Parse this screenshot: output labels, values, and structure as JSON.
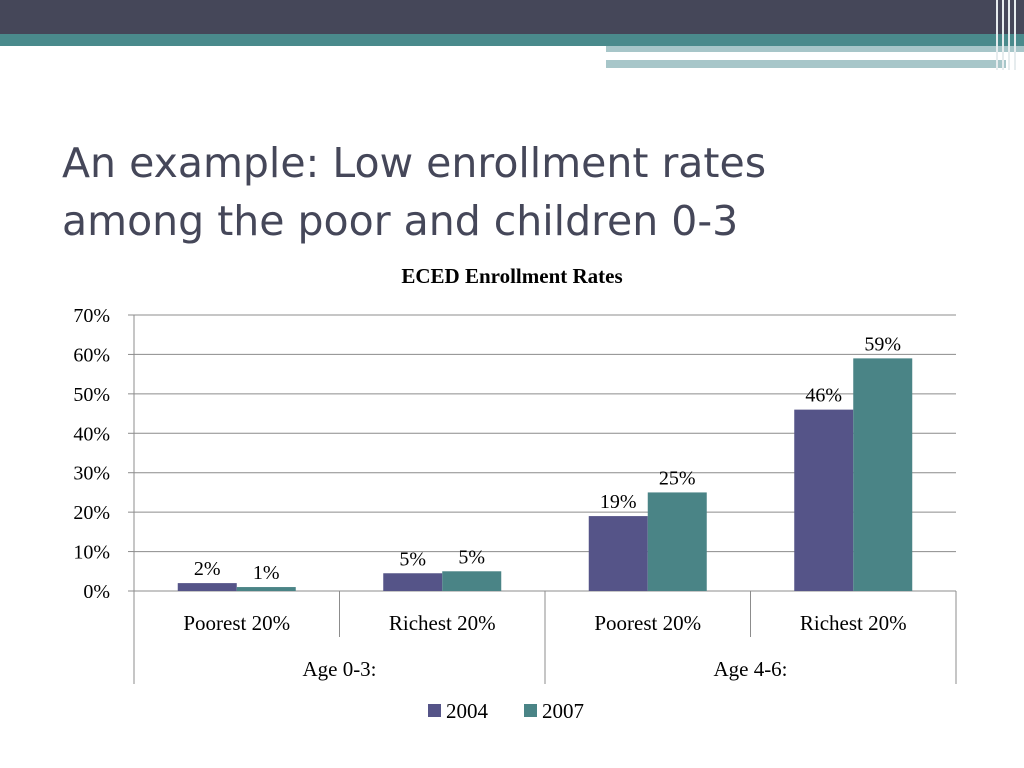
{
  "slide": {
    "title_line1": "An example: Low enrollment rates",
    "title_line2": "among the poor and children 0-3"
  },
  "colors": {
    "header_dark": "#454759",
    "header_teal": "#4a8a8c",
    "series_2004": "#555488",
    "series_2007": "#4a8486"
  },
  "chart_data": {
    "type": "bar",
    "title": "ECED Enrollment Rates",
    "categories": [
      "Poorest 20%",
      "Richest 20%",
      "Poorest 20%",
      "Richest 20%"
    ],
    "groups": [
      {
        "label": "Age 0-3:",
        "span": [
          0,
          1
        ]
      },
      {
        "label": "Age 4-6:",
        "span": [
          2,
          3
        ]
      }
    ],
    "series": [
      {
        "name": "2004",
        "values": [
          0.02,
          0.045,
          0.19,
          0.46
        ],
        "labels": [
          "2%",
          "5%",
          "19%",
          "46%"
        ]
      },
      {
        "name": "2007",
        "values": [
          0.01,
          0.05,
          0.25,
          0.59
        ],
        "labels": [
          "1%",
          "5%",
          "25%",
          "59%"
        ]
      }
    ],
    "ylim": [
      0,
      0.7
    ],
    "yticks": [
      "0%",
      "10%",
      "20%",
      "30%",
      "40%",
      "50%",
      "60%",
      "70%"
    ],
    "grid": true,
    "legend": "bottom"
  }
}
